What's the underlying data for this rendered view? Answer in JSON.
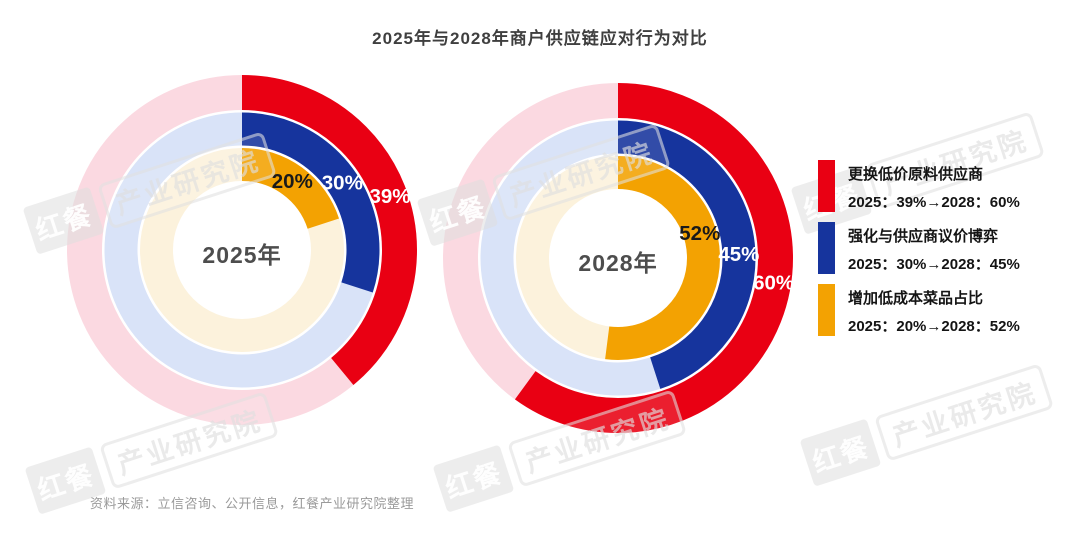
{
  "title": "2025年与2028年商户供应链应对行为对比",
  "source_note": "资料来源：立信咨询、公开信息，红餐产业研究院整理",
  "watermark": {
    "brand": "红餐",
    "institute": "产业研究院"
  },
  "colors": {
    "red": "#E90013",
    "blue": "#16349D",
    "orange": "#F3A202",
    "red_track": "#FBD9E1",
    "blue_track": "#D9E3F8",
    "orange_track": "#FCF2DC",
    "label_dark": "#1A1A1A",
    "label_light": "#FFFFFF",
    "title_text": "#3F3F3F",
    "center_text": "#4D4D4D",
    "source_text": "#9A9A9A"
  },
  "legend": {
    "items": [
      {
        "color_key": "red",
        "label": "更换低价原料供应商",
        "values": "2025：39%→2028：60%"
      },
      {
        "color_key": "blue",
        "label": "强化与供应商议价博弈",
        "values": "2025：30%→2028：45%"
      },
      {
        "color_key": "orange",
        "label": "增加低成本菜品占比",
        "values": "2025：20%→2028：52%"
      }
    ]
  },
  "chart_data": {
    "type": "donut",
    "description": "Two concentric three-ring donut charts; each ring shows one behavior's share starting at 12 o'clock and sweeping clockwise, with the remainder drawn as a pale track ring.",
    "series": [
      "更换低价原料供应商",
      "强化与供应商议价博弈",
      "增加低成本菜品占比"
    ],
    "charts": [
      {
        "center_label": "2025年",
        "rings": [
          {
            "series": "更换低价原料供应商",
            "value": 39,
            "label": "39%",
            "color_key": "red",
            "label_color_key": "label_light",
            "label_angle_deg": 70
          },
          {
            "series": "强化与供应商议价博弈",
            "value": 30,
            "label": "30%",
            "color_key": "blue",
            "label_color_key": "label_light",
            "label_angle_deg": 56
          },
          {
            "series": "增加低成本菜品占比",
            "value": 20,
            "label": "20%",
            "color_key": "orange",
            "label_color_key": "label_dark",
            "label_angle_deg": 36
          }
        ]
      },
      {
        "center_label": "2028年",
        "rings": [
          {
            "series": "更换低价原料供应商",
            "value": 60,
            "label": "60%",
            "color_key": "red",
            "label_color_key": "label_light",
            "label_angle_deg": 99
          },
          {
            "series": "强化与供应商议价博弈",
            "value": 45,
            "label": "45%",
            "color_key": "blue",
            "label_color_key": "label_light",
            "label_angle_deg": 88
          },
          {
            "series": "增加低成本菜品占比",
            "value": 52,
            "label": "52%",
            "color_key": "orange",
            "label_color_key": "label_dark",
            "label_angle_deg": 73
          }
        ]
      }
    ],
    "layout": {
      "start_angle_deg": 0,
      "direction": "clockwise",
      "ring_mid_radii": [
        157.5,
        121,
        85.5
      ],
      "ring_widths": [
        35,
        33,
        33
      ],
      "center_hole_radius": 68,
      "grid": false,
      "legend_position": "right"
    }
  }
}
